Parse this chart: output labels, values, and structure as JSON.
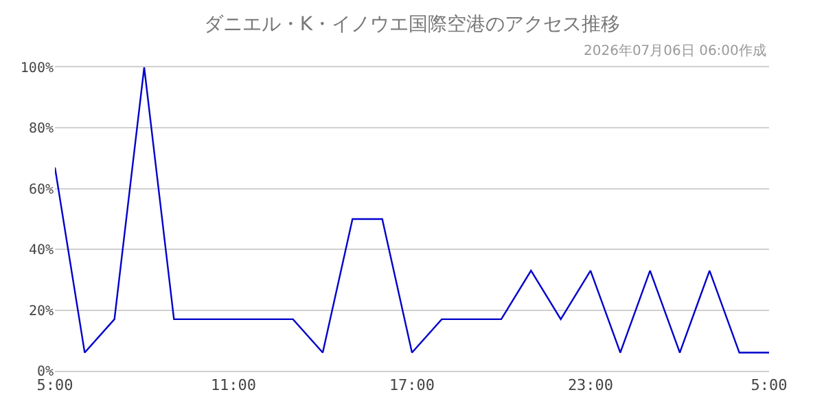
{
  "chart_data": {
    "type": "line",
    "title": "ダニエル・K・イノウエ国際空港のアクセス推移",
    "subtitle": "2026年07月06日 06:00作成",
    "x": [
      "2026-07-05T05:00",
      "2026-07-05T06:00",
      "2026-07-05T07:00",
      "2026-07-05T08:00",
      "2026-07-05T09:00",
      "2026-07-05T10:00",
      "2026-07-05T11:00",
      "2026-07-05T12:00",
      "2026-07-05T13:00",
      "2026-07-05T14:00",
      "2026-07-05T15:00",
      "2026-07-05T16:00",
      "2026-07-05T17:00",
      "2026-07-05T18:00",
      "2026-07-05T19:00",
      "2026-07-05T20:00",
      "2026-07-05T21:00",
      "2026-07-05T22:00",
      "2026-07-05T23:00",
      "2026-07-06T00:00",
      "2026-07-06T01:00",
      "2026-07-06T02:00",
      "2026-07-06T03:00",
      "2026-07-06T04:00",
      "2026-07-06T05:00"
    ],
    "series": [
      {
        "color": "#0000cc",
        "values": [
          67,
          6,
          17,
          100,
          17,
          17,
          17,
          17,
          17,
          6,
          50,
          50,
          6,
          17,
          17,
          17,
          33,
          17,
          33,
          6,
          33,
          6,
          33,
          6,
          6
        ]
      }
    ],
    "xlim": [
      "2026-07-05T05:00",
      "2026-07-06T05:00"
    ],
    "xticks": [
      {
        "value": "2026-07-05T05:00",
        "label": "5:00"
      },
      {
        "value": "2026-07-05T11:00",
        "label": "11:00"
      },
      {
        "value": "2026-07-05T17:00",
        "label": "17:00"
      },
      {
        "value": "2026-07-05T23:00",
        "label": "23:00"
      },
      {
        "value": "2026-07-06T05:00",
        "label": "5:00"
      }
    ],
    "ylim": [
      0,
      100
    ],
    "yticks": [
      {
        "value": 0,
        "label": "0%"
      },
      {
        "value": 20,
        "label": "20%"
      },
      {
        "value": 40,
        "label": "40%"
      },
      {
        "value": 60,
        "label": "60%"
      },
      {
        "value": 80,
        "label": "80%"
      },
      {
        "value": 100,
        "label": "100%"
      }
    ],
    "grid": "y",
    "marker": "none",
    "line_style": "solid"
  }
}
